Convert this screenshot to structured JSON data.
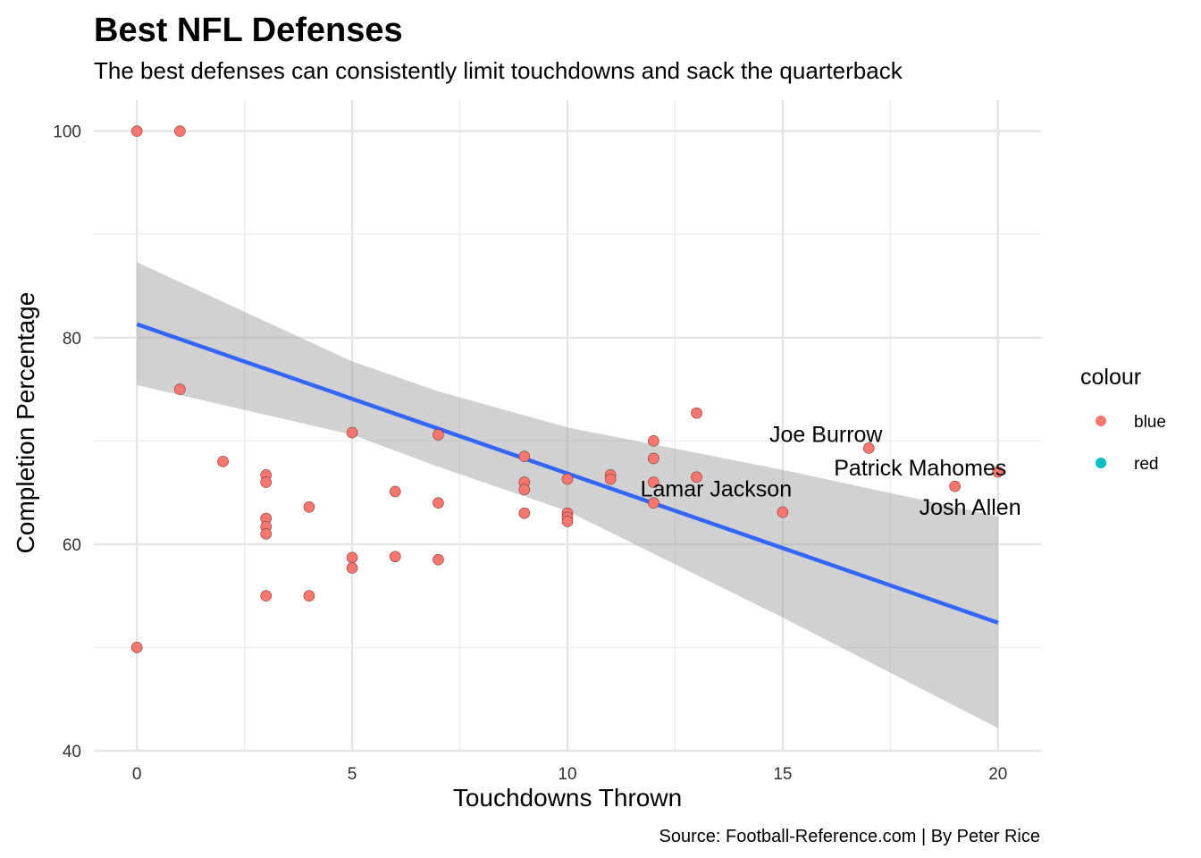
{
  "chart_data": {
    "type": "scatter",
    "title": "Best NFL Defenses",
    "subtitle": "The best defenses can consistently limit touchdowns and sack the quarterback",
    "xlabel": "Touchdowns Thrown",
    "ylabel": "Completion Percentage",
    "caption": "Source: Football-Reference.com | By Peter Rice",
    "xlim": [
      -1,
      21
    ],
    "ylim": [
      40,
      103
    ],
    "x_ticks": [
      0,
      5,
      10,
      15,
      20
    ],
    "y_ticks": [
      40,
      60,
      80,
      100
    ],
    "grid": true,
    "legend": {
      "title": "colour",
      "placement": "right",
      "entries": [
        {
          "label": "blue",
          "color": "#F8766D"
        },
        {
          "label": "red",
          "color": "#00BFC4"
        }
      ]
    },
    "point_color": "#F8766D",
    "points": [
      [
        0,
        100
      ],
      [
        1,
        100
      ],
      [
        1,
        75
      ],
      [
        0,
        50
      ],
      [
        2,
        68
      ],
      [
        3,
        66.7
      ],
      [
        3,
        66
      ],
      [
        3,
        62.5
      ],
      [
        3,
        61.7
      ],
      [
        3,
        61
      ],
      [
        3,
        55
      ],
      [
        4,
        63.6
      ],
      [
        4,
        55
      ],
      [
        5,
        70.8
      ],
      [
        5,
        58.7
      ],
      [
        5,
        57.7
      ],
      [
        6,
        65.1
      ],
      [
        6,
        58.8
      ],
      [
        7,
        70.6
      ],
      [
        7,
        64
      ],
      [
        7,
        58.5
      ],
      [
        9,
        68.5
      ],
      [
        9,
        66
      ],
      [
        9,
        65.3
      ],
      [
        9,
        63
      ],
      [
        10,
        66.3
      ],
      [
        10,
        63
      ],
      [
        10,
        62.6
      ],
      [
        10,
        62.2
      ],
      [
        11,
        66.7
      ],
      [
        11,
        66.3
      ],
      [
        12,
        70
      ],
      [
        12,
        68.3
      ],
      [
        12,
        66
      ],
      [
        12,
        64
      ],
      [
        13,
        72.7
      ],
      [
        13,
        66.5
      ],
      [
        15,
        63.1
      ],
      [
        17,
        69.3
      ],
      [
        19,
        65.6
      ],
      [
        20,
        67
      ]
    ],
    "annotations": [
      {
        "text": "Joe Burrow",
        "x": 17,
        "y": 69.3
      },
      {
        "text": "Patrick Mahomes",
        "x": 20,
        "y": 67
      },
      {
        "text": "Lamar Jackson",
        "x": 12,
        "y": 64
      },
      {
        "text": "Josh Allen",
        "x": 19,
        "y": 65.6
      }
    ],
    "trend_line": {
      "color": "#3366FF",
      "x": [
        0,
        20
      ],
      "y": [
        81.3,
        52.4
      ]
    },
    "confidence_band": {
      "color": "#999999",
      "x": [
        0,
        5,
        7,
        10,
        15,
        20
      ],
      "upper": [
        87.3,
        77.7,
        74.8,
        71.3,
        67.2,
        62.7
      ],
      "lower": [
        75.4,
        70.6,
        67.5,
        63.2,
        52.9,
        42.2
      ]
    }
  }
}
